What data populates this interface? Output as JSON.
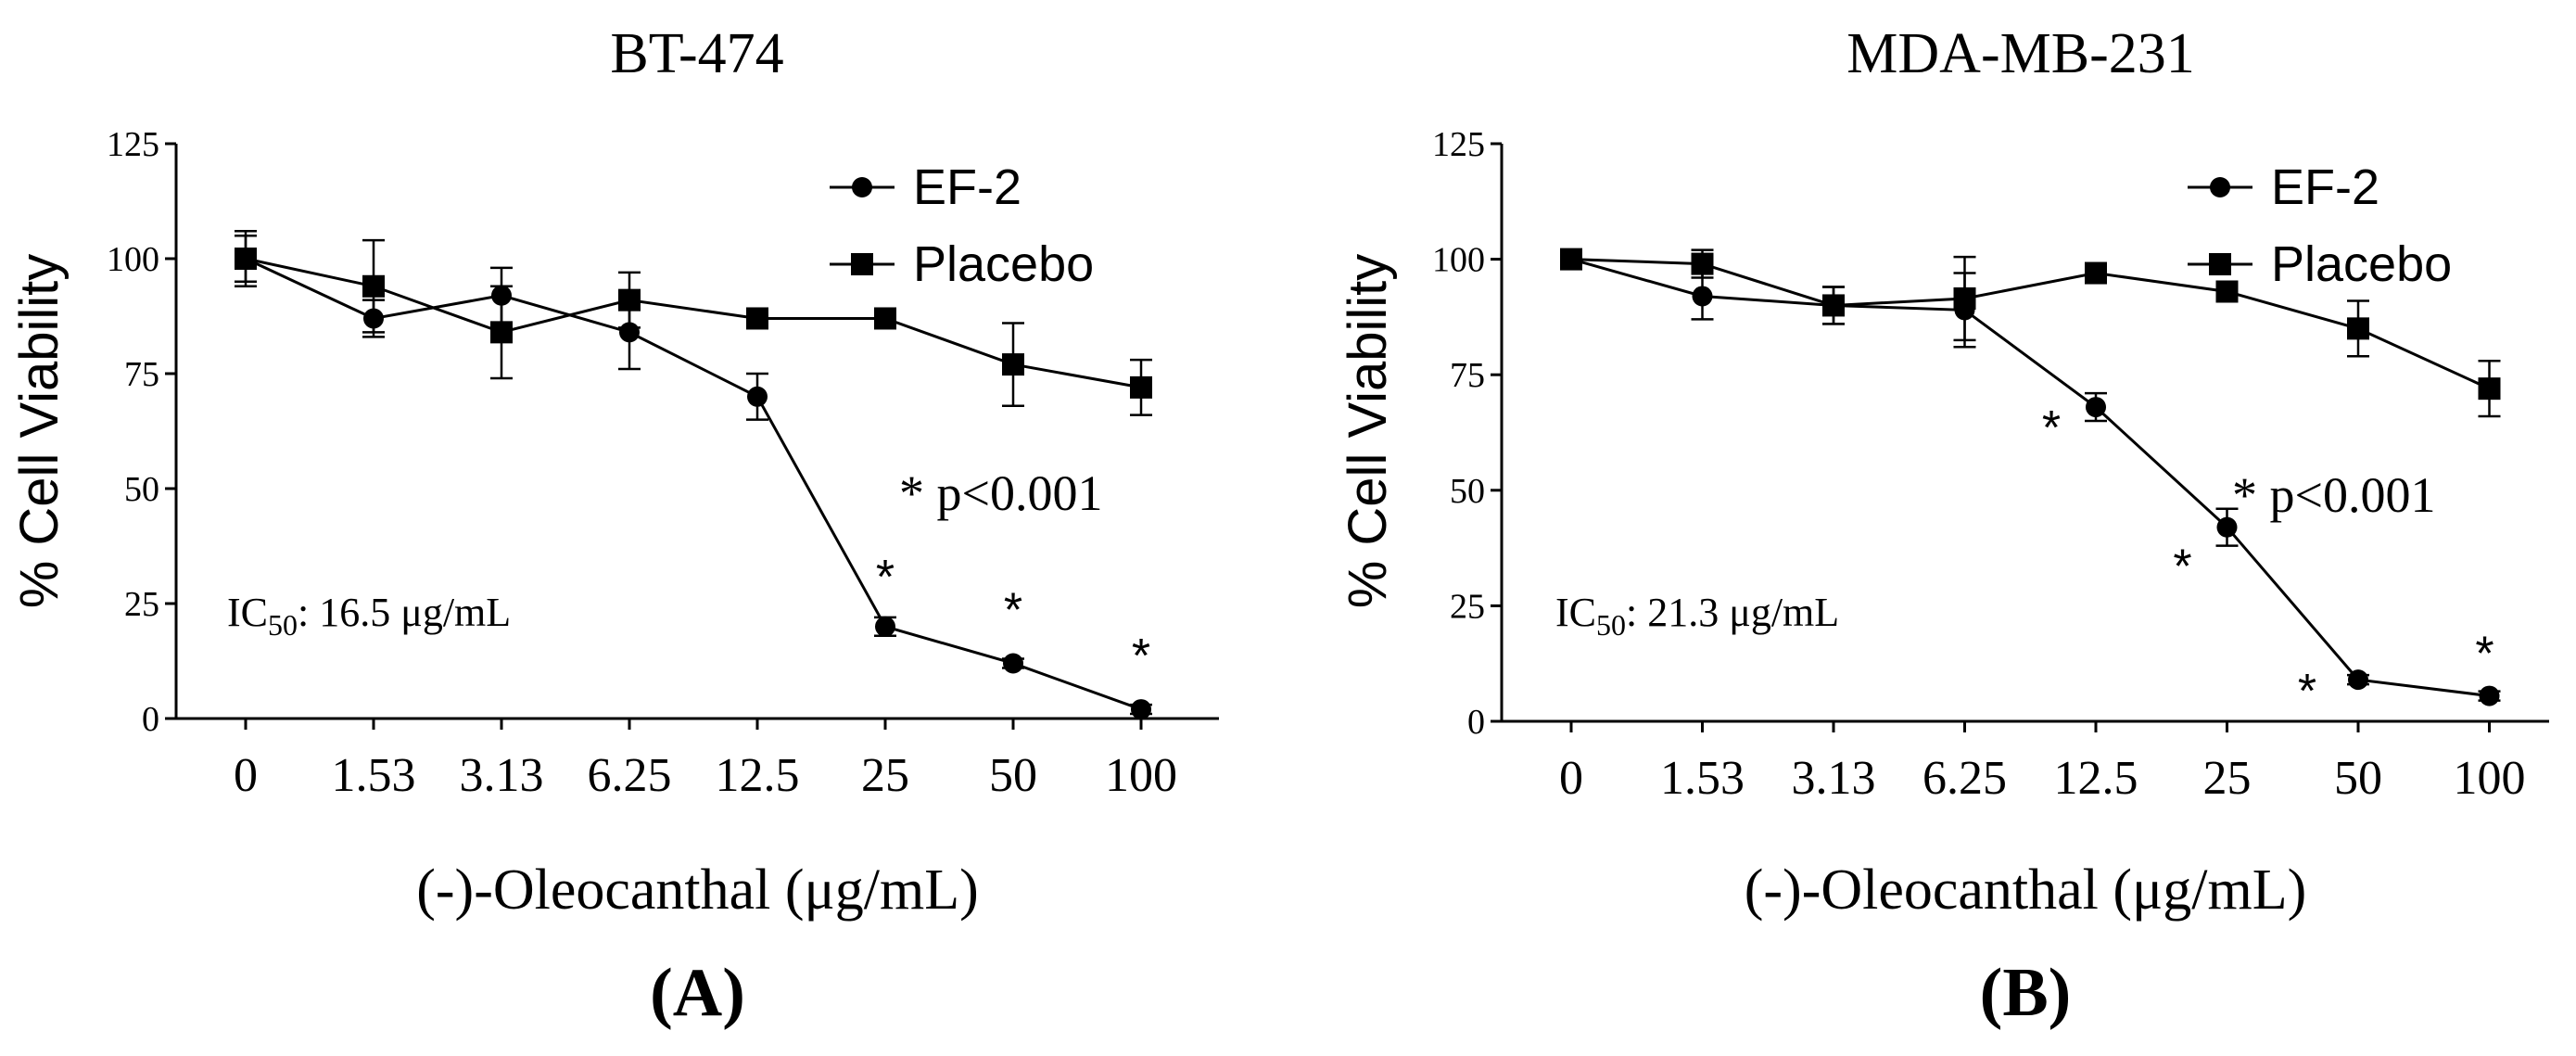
{
  "chart_data": [
    {
      "type": "line",
      "title": "BT-474",
      "panel_label": "(A)",
      "xlabel": "(-)-Oleocanthal (μg/mL)",
      "ylabel": "% Cell Viability",
      "categories": [
        "0",
        "1.53",
        "3.13",
        "6.25",
        "12.5",
        "25",
        "50",
        "100"
      ],
      "ylim": [
        0,
        125
      ],
      "yticks": [
        0,
        25,
        50,
        75,
        100,
        125
      ],
      "series": [
        {
          "name": "EF-2",
          "marker": "circle",
          "values": [
            100,
            87,
            92,
            84,
            70,
            20,
            12,
            2
          ],
          "errors": [
            5,
            4,
            6,
            8,
            5,
            2,
            1,
            1
          ]
        },
        {
          "name": "Placebo",
          "marker": "square",
          "values": [
            100,
            94,
            84,
            91,
            87,
            87,
            77,
            72
          ],
          "errors": [
            6,
            10,
            10,
            6,
            1,
            1,
            9,
            6
          ]
        }
      ],
      "significance_label": "* p<0.001",
      "significant_categories": [
        "25",
        "50",
        "100"
      ],
      "ic50_prefix": "IC",
      "ic50_sub": "50",
      "ic50_value": ": 16.5 μg/mL"
    },
    {
      "type": "line",
      "title": "MDA-MB-231",
      "panel_label": "(B)",
      "xlabel": "(-)-Oleocanthal (μg/mL)",
      "ylabel": "% Cell Viability",
      "categories": [
        "0",
        "1.53",
        "3.13",
        "6.25",
        "12.5",
        "25",
        "50",
        "100"
      ],
      "ylim": [
        0,
        125
      ],
      "yticks": [
        0,
        25,
        50,
        75,
        100,
        125
      ],
      "series": [
        {
          "name": "EF-2",
          "marker": "circle",
          "values": [
            100,
            92,
            90,
            89,
            68,
            42,
            9,
            5.5
          ],
          "errors": [
            2,
            5,
            4,
            8,
            3,
            4,
            1,
            1
          ]
        },
        {
          "name": "Placebo",
          "marker": "square",
          "values": [
            100,
            99,
            90,
            91.5,
            97,
            93,
            85,
            72
          ],
          "errors": [
            2,
            3,
            4,
            9,
            2,
            1,
            6,
            6
          ]
        }
      ],
      "significance_label": "* p<0.001",
      "significant_categories": [
        "12.5",
        "25",
        "50",
        "100"
      ],
      "ic50_prefix": "IC",
      "ic50_sub": "50",
      "ic50_value": ": 21.3 μg/mL"
    }
  ]
}
